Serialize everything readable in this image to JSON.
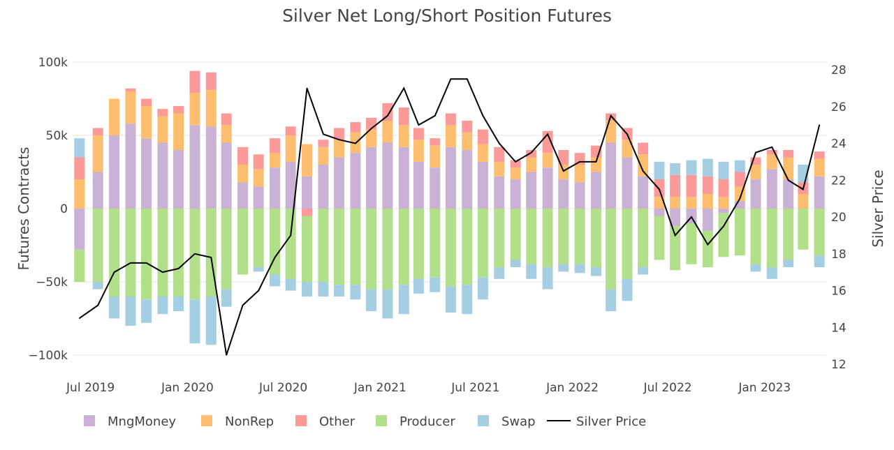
{
  "chart_data": {
    "type": "bar",
    "title": "Silver Net Long/Short Position Futures",
    "ylabel": "Futures Contracts",
    "y2label": "Silver Price",
    "ylim": [
      -100000,
      100000
    ],
    "y2lim": [
      12,
      28
    ],
    "yticks": [
      {
        "v": 100000,
        "label": "100k"
      },
      {
        "v": 50000,
        "label": "50k"
      },
      {
        "v": 0,
        "label": "0"
      },
      {
        "v": -50000,
        "label": "−50k"
      },
      {
        "v": -100000,
        "label": "−100k"
      }
    ],
    "y2ticks": [
      28,
      26,
      24,
      22,
      20,
      18,
      16,
      14,
      12
    ],
    "xticks": [
      {
        "d": "2019-07-01",
        "label": "Jul 2019"
      },
      {
        "d": "2020-01-01",
        "label": "Jan 2020"
      },
      {
        "d": "2020-07-01",
        "label": "Jul 2020"
      },
      {
        "d": "2021-01-01",
        "label": "Jan 2021"
      },
      {
        "d": "2021-07-01",
        "label": "Jul 2021"
      },
      {
        "d": "2022-01-01",
        "label": "Jan 2022"
      },
      {
        "d": "2022-07-01",
        "label": "Jul 2022"
      },
      {
        "d": "2023-01-01",
        "label": "Jan 2023"
      }
    ],
    "xrange": [
      "2019-05-28",
      "2023-04-28"
    ],
    "barmode": "relative",
    "legend_position": "bottom",
    "grid": true,
    "x": [
      "2019-06-10",
      "2019-07-15",
      "2019-08-15",
      "2019-09-15",
      "2019-10-15",
      "2019-11-15",
      "2019-12-15",
      "2020-01-15",
      "2020-02-15",
      "2020-03-15",
      "2020-04-15",
      "2020-05-15",
      "2020-06-15",
      "2020-07-15",
      "2020-08-15",
      "2020-09-15",
      "2020-10-15",
      "2020-11-15",
      "2020-12-15",
      "2021-01-15",
      "2021-02-15",
      "2021-03-15",
      "2021-04-15",
      "2021-05-15",
      "2021-06-15",
      "2021-07-15",
      "2021-08-15",
      "2021-09-15",
      "2021-10-15",
      "2021-11-15",
      "2021-12-15",
      "2022-01-15",
      "2022-02-15",
      "2022-03-15",
      "2022-04-15",
      "2022-05-15",
      "2022-06-15",
      "2022-07-15",
      "2022-08-15",
      "2022-09-15",
      "2022-10-15",
      "2022-11-15",
      "2022-12-15",
      "2023-01-15",
      "2023-02-15",
      "2023-03-15",
      "2023-04-15"
    ],
    "series": [
      {
        "name": "MngMoney",
        "color": "#cab2d6",
        "values": [
          -28,
          25,
          50,
          58,
          48,
          45,
          40,
          57,
          56,
          45,
          18,
          15,
          28,
          32,
          22,
          30,
          35,
          38,
          42,
          45,
          42,
          32,
          28,
          42,
          40,
          32,
          22,
          20,
          25,
          28,
          20,
          18,
          25,
          45,
          35,
          22,
          -5,
          -12,
          -10,
          -15,
          -3,
          5,
          20,
          27,
          20,
          0,
          22
        ]
      },
      {
        "name": "NonRep",
        "color": "#fdbf6f",
        "values": [
          20,
          25,
          25,
          22,
          22,
          18,
          25,
          22,
          25,
          12,
          12,
          12,
          10,
          18,
          22,
          12,
          12,
          14,
          12,
          15,
          15,
          15,
          15,
          15,
          12,
          12,
          10,
          8,
          10,
          10,
          10,
          12,
          10,
          15,
          12,
          15,
          8,
          8,
          8,
          10,
          8,
          10,
          10,
          10,
          15,
          10,
          12
        ]
      },
      {
        "name": "Other",
        "color": "#fb9a99",
        "values": [
          15,
          5,
          0,
          2,
          5,
          5,
          5,
          15,
          12,
          8,
          12,
          10,
          10,
          6,
          -5,
          5,
          8,
          7,
          8,
          12,
          12,
          8,
          5,
          8,
          8,
          10,
          10,
          5,
          5,
          15,
          10,
          8,
          8,
          5,
          8,
          8,
          12,
          15,
          15,
          12,
          12,
          10,
          5,
          3,
          5,
          8,
          5
        ]
      },
      {
        "name": "Producer",
        "color": "#b2df8a",
        "values": [
          -22,
          -50,
          -60,
          -60,
          -62,
          -60,
          -60,
          -62,
          -60,
          -55,
          -45,
          -40,
          -45,
          -48,
          -45,
          -50,
          -52,
          -52,
          -55,
          -55,
          -52,
          -48,
          -47,
          -53,
          -52,
          -47,
          -40,
          -35,
          -38,
          -40,
          -38,
          -38,
          -40,
          -55,
          -48,
          -40,
          -30,
          -30,
          -28,
          -25,
          -30,
          -32,
          -38,
          -40,
          -35,
          -28,
          -32
        ]
      },
      {
        "name": "Swap",
        "color": "#a6cee3",
        "values": [
          13,
          -5,
          -15,
          -20,
          -16,
          -12,
          -10,
          -30,
          -33,
          -12,
          0,
          -3,
          -8,
          -8,
          -10,
          -10,
          -8,
          -10,
          -15,
          -20,
          -20,
          -10,
          -10,
          -18,
          -20,
          -15,
          -8,
          -5,
          -10,
          -15,
          -5,
          -6,
          -6,
          -15,
          -15,
          -5,
          12,
          8,
          10,
          12,
          12,
          8,
          -5,
          -8,
          -5,
          12,
          -8
        ]
      }
    ],
    "units": "thousands of contracts",
    "line": {
      "name": "Silver Price",
      "color": "#000000",
      "values": [
        14.5,
        15.2,
        17.0,
        17.5,
        17.5,
        17.0,
        17.2,
        18.0,
        17.8,
        12.5,
        15.2,
        16.0,
        17.8,
        19.0,
        27.0,
        24.5,
        24.2,
        24.0,
        24.8,
        25.5,
        27.0,
        25.0,
        25.5,
        27.5,
        27.5,
        25.5,
        24.0,
        23.0,
        23.5,
        24.5,
        22.5,
        23.0,
        23.0,
        25.5,
        24.5,
        22.5,
        21.5,
        19.0,
        20.0,
        18.5,
        19.5,
        21.0,
        23.5,
        23.8,
        22.0,
        21.5,
        25.0
      ]
    }
  }
}
